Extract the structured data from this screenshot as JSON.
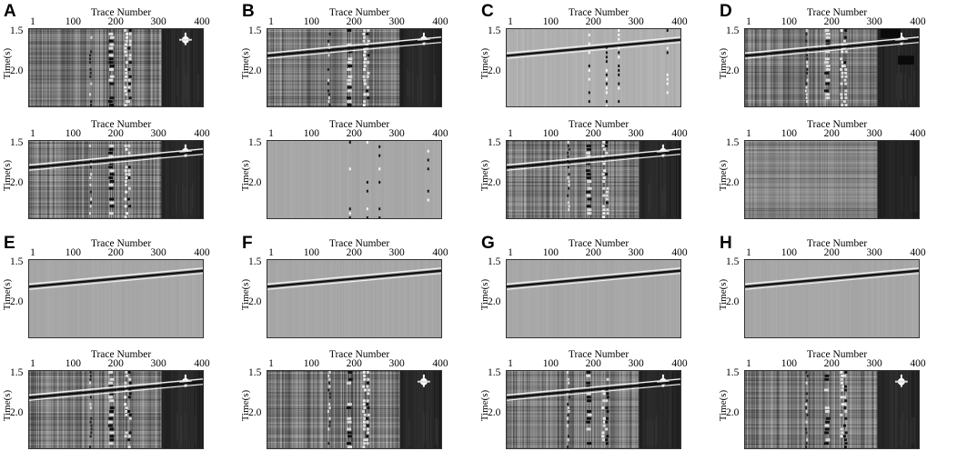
{
  "figure": {
    "panels": [
      {
        "letter": "A",
        "subplots": [
          {
            "kind": "noisy"
          },
          {
            "kind": "noisy"
          }
        ]
      },
      {
        "letter": "B",
        "subplots": [
          {
            "kind": "noisy"
          },
          {
            "kind": "residual"
          }
        ]
      },
      {
        "letter": "C",
        "subplots": [
          {
            "kind": "hp"
          },
          {
            "kind": "noisy"
          }
        ]
      },
      {
        "letter": "D",
        "subplots": [
          {
            "kind": "noisy-dark"
          },
          {
            "kind": "smooth"
          }
        ]
      },
      {
        "letter": "E",
        "subplots": [
          {
            "kind": "clean"
          },
          {
            "kind": "noisy"
          }
        ]
      },
      {
        "letter": "F",
        "subplots": [
          {
            "kind": "clean"
          },
          {
            "kind": "noisy"
          }
        ]
      },
      {
        "letter": "G",
        "subplots": [
          {
            "kind": "clean"
          },
          {
            "kind": "noisy"
          }
        ]
      },
      {
        "letter": "H",
        "subplots": [
          {
            "kind": "clean"
          },
          {
            "kind": "noisy"
          }
        ]
      }
    ],
    "axes": {
      "x_title": "Trace Number",
      "x_ticks": [
        "1",
        "100",
        "200",
        "300",
        "400"
      ],
      "y_title": "Time(s)",
      "y_ticks": [
        "1.5",
        "2.0"
      ]
    },
    "colors": {
      "dark": "#0a0a0a",
      "mid_gray": "#7d7d7d",
      "light_gray": "#a9a9a9",
      "event": "#1a1a1a"
    }
  }
}
